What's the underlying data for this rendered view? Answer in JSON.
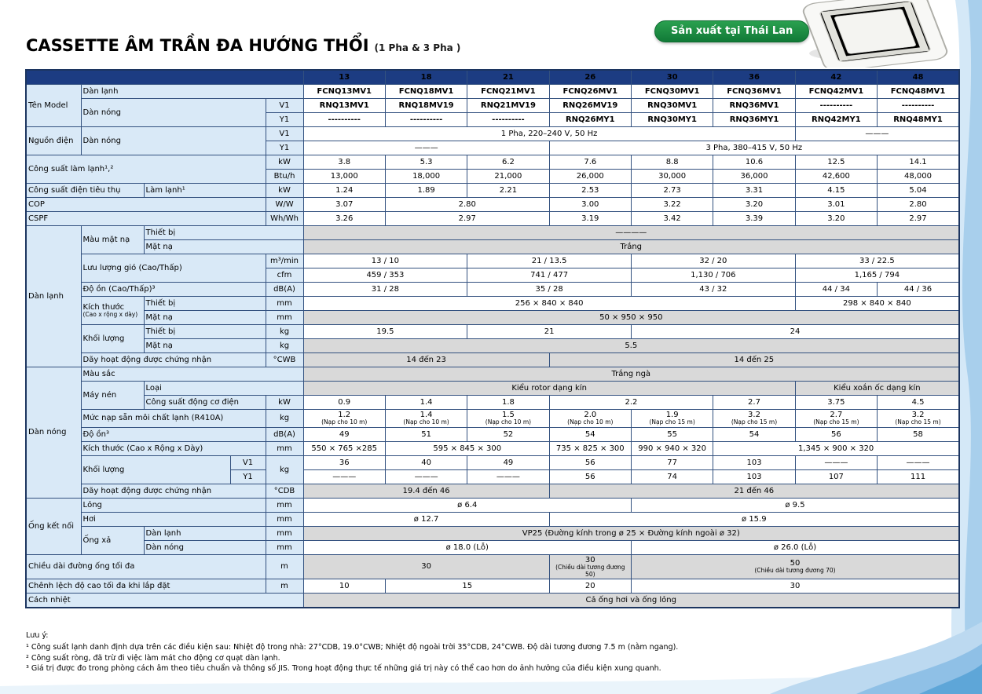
{
  "page": {
    "title": "CASSETTE ÂM TRẦN ĐA HƯỚNG THỔI",
    "title_suffix": "(1 Pha & 3 Pha )",
    "badge": "Sản xuất tại Thái Lan"
  },
  "colors": {
    "header_bg": "#1c3c82",
    "label_bg": "#d9e9f7",
    "gray_bg": "#d9d9d9",
    "model_text": "#15317e",
    "badge_green": "#117a37",
    "swoosh_blue": "#a8cfec"
  },
  "table": {
    "rows": [
      [
        {
          "t": "",
          "cs": 5,
          "k": "h"
        },
        {
          "t": "13",
          "k": "h"
        },
        {
          "t": "18",
          "k": "h"
        },
        {
          "t": "21",
          "k": "h"
        },
        {
          "t": "26",
          "k": "h"
        },
        {
          "t": "30",
          "k": "h"
        },
        {
          "t": "36",
          "k": "h"
        },
        {
          "t": "42",
          "k": "h"
        },
        {
          "t": "48",
          "k": "h"
        }
      ],
      [
        {
          "t": "Tên Model",
          "rs": 3,
          "k": "l"
        },
        {
          "t": "Dàn lạnh",
          "cs": 4,
          "k": "l"
        },
        {
          "t": "FCNQ13MV1",
          "k": "m"
        },
        {
          "t": "FCNQ18MV1",
          "k": "m"
        },
        {
          "t": "FCNQ21MV1",
          "k": "m"
        },
        {
          "t": "FCNQ26MV1",
          "k": "m"
        },
        {
          "t": "FCNQ30MV1",
          "k": "m"
        },
        {
          "t": "FCNQ36MV1",
          "k": "m"
        },
        {
          "t": "FCNQ42MV1",
          "k": "m"
        },
        {
          "t": "FCNQ48MV1",
          "k": "m"
        }
      ],
      [
        {
          "t": "Dàn nóng",
          "cs": 3,
          "rs": 2,
          "k": "l"
        },
        {
          "t": "V1",
          "k": "u"
        },
        {
          "t": "RNQ13MV1",
          "k": "m"
        },
        {
          "t": "RNQ18MV19",
          "k": "m"
        },
        {
          "t": "RNQ21MV19",
          "k": "m"
        },
        {
          "t": "RNQ26MV19",
          "k": "m"
        },
        {
          "t": "RNQ30MV1",
          "k": "m"
        },
        {
          "t": "RNQ36MV1",
          "k": "m"
        },
        {
          "t": "----------",
          "k": "m"
        },
        {
          "t": "----------",
          "k": "m"
        }
      ],
      [
        {
          "t": "Y1",
          "k": "u"
        },
        {
          "t": "----------",
          "k": "m"
        },
        {
          "t": "----------",
          "k": "m"
        },
        {
          "t": "----------",
          "k": "m"
        },
        {
          "t": "RNQ26MY1",
          "k": "m"
        },
        {
          "t": "RNQ30MY1",
          "k": "m"
        },
        {
          "t": "RNQ36MY1",
          "k": "m"
        },
        {
          "t": "RNQ42MY1",
          "k": "m"
        },
        {
          "t": "RNQ48MY1",
          "k": "m"
        }
      ],
      [
        {
          "t": "Nguồn điện",
          "rs": 2,
          "k": "l"
        },
        {
          "t": "Dàn nóng",
          "cs": 3,
          "rs": 2,
          "k": "l"
        },
        {
          "t": "V1",
          "k": "u"
        },
        {
          "t": "1 Pha, 220–240 V, 50 Hz",
          "cs": 6
        },
        {
          "t": "———",
          "cs": 2
        }
      ],
      [
        {
          "t": "Y1",
          "k": "u"
        },
        {
          "t": "———",
          "cs": 3
        },
        {
          "t": "3 Pha, 380–415 V, 50 Hz",
          "cs": 5
        }
      ],
      [
        {
          "t": "Công suất làm lạnh¹,²",
          "cs": 4,
          "rs": 2,
          "k": "l"
        },
        {
          "t": "kW",
          "k": "u"
        },
        {
          "t": "3.8"
        },
        {
          "t": "5.3"
        },
        {
          "t": "6.2"
        },
        {
          "t": "7.6"
        },
        {
          "t": "8.8"
        },
        {
          "t": "10.6"
        },
        {
          "t": "12.5"
        },
        {
          "t": "14.1"
        }
      ],
      [
        {
          "t": "Btu/h",
          "k": "u"
        },
        {
          "t": "13,000"
        },
        {
          "t": "18,000"
        },
        {
          "t": "21,000"
        },
        {
          "t": "26,000"
        },
        {
          "t": "30,000"
        },
        {
          "t": "36,000"
        },
        {
          "t": "42,600"
        },
        {
          "t": "48,000"
        }
      ],
      [
        {
          "t": "Công suất điện tiêu thụ",
          "cs": 2,
          "k": "l"
        },
        {
          "t": "Làm lạnh¹",
          "cs": 2,
          "k": "l"
        },
        {
          "t": "kW",
          "k": "u"
        },
        {
          "t": "1.24"
        },
        {
          "t": "1.89"
        },
        {
          "t": "2.21"
        },
        {
          "t": "2.53"
        },
        {
          "t": "2.73"
        },
        {
          "t": "3.31"
        },
        {
          "t": "4.15"
        },
        {
          "t": "5.04"
        }
      ],
      [
        {
          "t": "COP",
          "cs": 4,
          "k": "l"
        },
        {
          "t": "W/W",
          "k": "u"
        },
        {
          "t": "3.07"
        },
        {
          "t": "2.80",
          "cs": 2
        },
        {
          "t": "3.00"
        },
        {
          "t": "3.22"
        },
        {
          "t": "3.20"
        },
        {
          "t": "3.01"
        },
        {
          "t": "2.80"
        }
      ],
      [
        {
          "t": "CSPF",
          "cs": 4,
          "k": "l"
        },
        {
          "t": "Wh/Wh",
          "k": "u"
        },
        {
          "t": "3.26"
        },
        {
          "t": "2.97",
          "cs": 2
        },
        {
          "t": "3.19"
        },
        {
          "t": "3.42"
        },
        {
          "t": "3.39"
        },
        {
          "t": "3.20"
        },
        {
          "t": "2.97"
        }
      ],
      [
        {
          "t": "Dàn lạnh",
          "rs": 10,
          "k": "ls"
        },
        {
          "t": "Màu mặt nạ",
          "rs": 2,
          "k": "l"
        },
        {
          "t": "Thiết bị",
          "cs": 3,
          "k": "l"
        },
        {
          "t": "————",
          "cs": 8,
          "k": "g"
        }
      ],
      [
        {
          "t": "Mặt nạ",
          "cs": 3,
          "k": "l"
        },
        {
          "t": "Trắng",
          "cs": 8,
          "k": "g"
        }
      ],
      [
        {
          "t": "Lưu lượng gió (Cao/Thấp)",
          "cs": 3,
          "rs": 2,
          "k": "l"
        },
        {
          "t": "m³/min",
          "k": "u"
        },
        {
          "t": "13 / 10",
          "cs": 2
        },
        {
          "t": "21 / 13.5",
          "cs": 2
        },
        {
          "t": "32 / 20",
          "cs": 2
        },
        {
          "t": "33 / 22.5",
          "cs": 2
        }
      ],
      [
        {
          "t": "cfm",
          "k": "u"
        },
        {
          "t": "459 / 353",
          "cs": 2
        },
        {
          "t": "741 / 477",
          "cs": 2
        },
        {
          "t": "1,130 / 706",
          "cs": 2
        },
        {
          "t": "1,165 / 794",
          "cs": 2
        }
      ],
      [
        {
          "t": "Độ ồn (Cao/Thấp)³",
          "cs": 3,
          "k": "l"
        },
        {
          "t": "dB(A)",
          "k": "u"
        },
        {
          "t": "31 / 28",
          "cs": 2
        },
        {
          "t": "35 / 28",
          "cs": 2
        },
        {
          "t": "43 / 32",
          "cs": 2
        },
        {
          "t": "44 / 34"
        },
        {
          "t": "44 / 36"
        }
      ],
      [
        {
          "t": "Kích thước\n(Cao x rộng x dày)",
          "rs": 2,
          "k": "l"
        },
        {
          "t": "Thiết bị",
          "cs": 2,
          "k": "l"
        },
        {
          "t": "mm",
          "k": "u"
        },
        {
          "t": "256 × 840 × 840",
          "cs": 6
        },
        {
          "t": "298 × 840 × 840",
          "cs": 2
        }
      ],
      [
        {
          "t": "Mặt nạ",
          "cs": 2,
          "k": "l"
        },
        {
          "t": "mm",
          "k": "u"
        },
        {
          "t": "50 × 950 × 950",
          "cs": 8,
          "k": "g"
        }
      ],
      [
        {
          "t": "Khối lượng",
          "rs": 2,
          "k": "l"
        },
        {
          "t": "Thiết bị",
          "cs": 2,
          "k": "l"
        },
        {
          "t": "kg",
          "k": "u"
        },
        {
          "t": "19.5",
          "cs": 2
        },
        {
          "t": "21",
          "cs": 2
        },
        {
          "t": "24",
          "cs": 4
        }
      ],
      [
        {
          "t": "Mặt nạ",
          "cs": 2,
          "k": "l"
        },
        {
          "t": "kg",
          "k": "u"
        },
        {
          "t": "5.5",
          "cs": 8,
          "k": "g"
        }
      ],
      [
        {
          "t": "Dãy hoạt động được chứng nhận",
          "cs": 3,
          "k": "l"
        },
        {
          "t": "°CWB",
          "k": "u"
        },
        {
          "t": "14 đến 23",
          "cs": 3,
          "k": "g"
        },
        {
          "t": "14 đến 25",
          "cs": 5,
          "k": "g"
        }
      ],
      [
        {
          "t": "Dàn nóng",
          "rs": 9,
          "k": "ls"
        },
        {
          "t": "Màu sắc",
          "cs": 4,
          "k": "l"
        },
        {
          "t": "Trắng ngà",
          "cs": 8,
          "k": "g"
        }
      ],
      [
        {
          "t": "Máy nén",
          "rs": 2,
          "k": "l"
        },
        {
          "t": "Loại",
          "cs": 3,
          "k": "l"
        },
        {
          "t": "Kiểu rotor dạng kín",
          "cs": 6,
          "k": "g"
        },
        {
          "t": "Kiểu xoắn ốc dạng kín",
          "cs": 2,
          "k": "g"
        }
      ],
      [
        {
          "t": "Công suất động cơ điện",
          "cs": 2,
          "k": "l"
        },
        {
          "t": "kW",
          "k": "u"
        },
        {
          "t": "0.9"
        },
        {
          "t": "1.4"
        },
        {
          "t": "1.8"
        },
        {
          "t": "2.2",
          "cs": 2
        },
        {
          "t": "2.7"
        },
        {
          "t": "3.75"
        },
        {
          "t": "4.5"
        }
      ],
      [
        {
          "t": "Mức nạp sẵn môi chất lạnh (R410A)",
          "cs": 3,
          "k": "l"
        },
        {
          "t": "kg",
          "k": "u"
        },
        {
          "t": "1.2\n(Nạp cho 10 m)"
        },
        {
          "t": "1.4\n(Nạp cho 10 m)"
        },
        {
          "t": "1.5\n(Nạp cho 10 m)"
        },
        {
          "t": "2.0\n(Nạp cho 10 m)"
        },
        {
          "t": "1.9\n(Nạp cho 15 m)"
        },
        {
          "t": "3.2\n(Nạp cho 15 m)"
        },
        {
          "t": "2.7\n(Nạp cho 15 m)"
        },
        {
          "t": "3.2\n(Nạp cho 15 m)"
        }
      ],
      [
        {
          "t": "Độ ồn³",
          "cs": 3,
          "k": "l"
        },
        {
          "t": "dB(A)",
          "k": "u"
        },
        {
          "t": "49"
        },
        {
          "t": "51"
        },
        {
          "t": "52"
        },
        {
          "t": "54"
        },
        {
          "t": "55"
        },
        {
          "t": "54"
        },
        {
          "t": "56"
        },
        {
          "t": "58"
        }
      ],
      [
        {
          "t": "Kích thước (Cao x Rộng x Dày)",
          "cs": 3,
          "k": "l"
        },
        {
          "t": "mm",
          "k": "u"
        },
        {
          "t": "550 × 765 ×285"
        },
        {
          "t": "595 × 845 × 300",
          "cs": 2
        },
        {
          "t": "735 × 825 × 300"
        },
        {
          "t": "990 × 940 × 320"
        },
        {
          "t": "1,345 × 900 × 320",
          "cs": 3
        }
      ],
      [
        {
          "t": "Khối lượng",
          "cs": 2,
          "rs": 2,
          "k": "l"
        },
        {
          "t": "V1",
          "k": "u"
        },
        {
          "t": "kg",
          "rs": 2,
          "k": "u"
        },
        {
          "t": "36"
        },
        {
          "t": "40"
        },
        {
          "t": "49"
        },
        {
          "t": "56"
        },
        {
          "t": "77"
        },
        {
          "t": "103"
        },
        {
          "t": "———"
        },
        {
          "t": "———"
        }
      ],
      [
        {
          "t": "Y1",
          "k": "u"
        },
        {
          "t": "———"
        },
        {
          "t": "———"
        },
        {
          "t": "———"
        },
        {
          "t": "56"
        },
        {
          "t": "74"
        },
        {
          "t": "103"
        },
        {
          "t": "107"
        },
        {
          "t": "111"
        }
      ],
      [
        {
          "t": "Dãy hoạt động được chứng nhận",
          "cs": 3,
          "k": "l"
        },
        {
          "t": "°CDB",
          "k": "u"
        },
        {
          "t": "19.4 đến 46",
          "cs": 3,
          "k": "g"
        },
        {
          "t": "21 đến 46",
          "cs": 5,
          "k": "g"
        }
      ],
      [
        {
          "t": "Ống kết nối",
          "rs": 4,
          "k": "ls"
        },
        {
          "t": "Lỏng",
          "cs": 3,
          "k": "l"
        },
        {
          "t": "mm",
          "k": "u"
        },
        {
          "t": "ø 6.4",
          "cs": 4
        },
        {
          "t": "ø 9.5",
          "cs": 4
        }
      ],
      [
        {
          "t": "Hơi",
          "cs": 3,
          "k": "l"
        },
        {
          "t": "mm",
          "k": "u"
        },
        {
          "t": "ø 12.7",
          "cs": 3
        },
        {
          "t": "ø 15.9",
          "cs": 5
        }
      ],
      [
        {
          "t": "Ống xả",
          "rs": 2,
          "k": "l"
        },
        {
          "t": "Dàn lạnh",
          "cs": 2,
          "k": "l"
        },
        {
          "t": "mm",
          "k": "u"
        },
        {
          "t": "VP25 (Đường kính trong ø 25 × Đường kính ngoài ø 32)",
          "cs": 8,
          "k": "g"
        }
      ],
      [
        {
          "t": "Dàn nóng",
          "cs": 2,
          "k": "l"
        },
        {
          "t": "mm",
          "k": "u"
        },
        {
          "t": "ø 18.0 (Lỗ)",
          "cs": 4
        },
        {
          "t": "ø 26.0 (Lỗ)",
          "cs": 4
        }
      ],
      [
        {
          "t": "Chiều dài đường ống tối đa",
          "cs": 4,
          "k": "l"
        },
        {
          "t": "m",
          "k": "u"
        },
        {
          "t": "30",
          "cs": 3,
          "k": "g"
        },
        {
          "t": "30\n(Chiều dài tương đương 50)",
          "k": "g"
        },
        {
          "t": "50\n(Chiều dài tương đương 70)",
          "cs": 4,
          "k": "g"
        }
      ],
      [
        {
          "t": "Chênh lệch độ cao tối đa khi lắp đặt",
          "cs": 4,
          "k": "l"
        },
        {
          "t": "m",
          "k": "u"
        },
        {
          "t": "10"
        },
        {
          "t": "15",
          "cs": 2
        },
        {
          "t": "20"
        },
        {
          "t": "30",
          "cs": 4
        }
      ],
      [
        {
          "t": "Cách nhiệt",
          "cs": 5,
          "k": "l"
        },
        {
          "t": "Cả ống hơi và ống lỏng",
          "cs": 8,
          "k": "g"
        }
      ]
    ]
  },
  "footnotes": {
    "title": "Lưu ý:",
    "items": [
      "¹ Công suất lạnh danh định dựa trên các điều kiện sau: Nhiệt độ trong nhà: 27°CDB, 19.0°CWB; Nhiệt độ ngoài trời 35°CDB, 24°CWB. Độ dài tương đương 7.5 m (nằm ngang).",
      "² Công suất ròng, đã trừ đi việc làm mát cho động cơ quạt dàn lạnh.",
      "³ Giá trị được đo trong phòng cách âm theo tiêu chuẩn và thông số JIS. Trong hoạt động thực tế những giá trị này có thể cao hơn do ảnh hưởng của điều kiện xung quanh."
    ]
  }
}
